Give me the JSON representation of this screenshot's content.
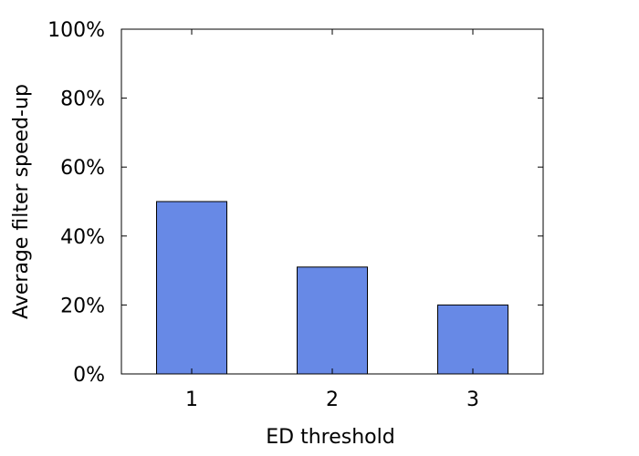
{
  "chart_data": {
    "type": "bar",
    "categories": [
      "1",
      "2",
      "3"
    ],
    "values": [
      50,
      31,
      20
    ],
    "xlabel": "ED threshold",
    "ylabel": "Average filter speed-up",
    "ylim": [
      0,
      100
    ],
    "yticks": [
      "0%",
      "20%",
      "40%",
      "60%",
      "80%",
      "100%"
    ],
    "ytick_values": [
      0,
      20,
      40,
      60,
      80,
      100
    ],
    "grid": false,
    "bar_color": "#6789e6",
    "bar_edge_color": "#000000"
  }
}
